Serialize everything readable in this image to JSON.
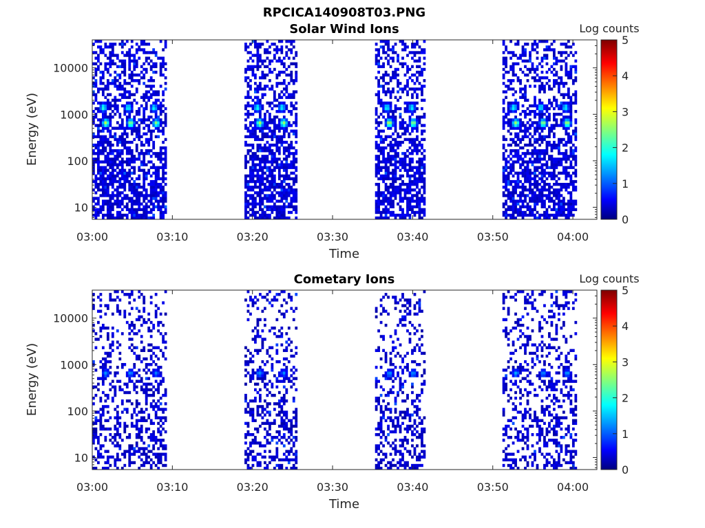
{
  "figure": {
    "title": "RPCICA140908T03.PNG"
  },
  "chart_data": [
    {
      "type": "heatmap",
      "title": "Solar Wind Ions",
      "xlabel": "Time",
      "ylabel": "Energy (eV)",
      "x_ticks": [
        "03:00",
        "03:10",
        "03:20",
        "03:30",
        "03:40",
        "03:50",
        "04:00"
      ],
      "y_ticks": [
        "10",
        "100",
        "1000",
        "10000"
      ],
      "y_scale": "log",
      "y_range": [
        5.5,
        40000
      ],
      "x_range_minutes": [
        0,
        63
      ],
      "colorbar": {
        "label": "Log counts",
        "ticks": [
          "0",
          "1",
          "2",
          "3",
          "4",
          "5"
        ],
        "range": [
          0,
          5
        ],
        "colormap": "jet"
      },
      "scan_intervals_minutes": [
        [
          0.0,
          9.3
        ],
        [
          19.0,
          25.4
        ],
        [
          35.3,
          41.5
        ],
        [
          51.2,
          60.5
        ]
      ],
      "hotspots": [
        {
          "t": 1.7,
          "E": 650,
          "v": 2.7
        },
        {
          "t": 4.8,
          "E": 650,
          "v": 2.6
        },
        {
          "t": 8.0,
          "E": 650,
          "v": 2.5
        },
        {
          "t": 1.4,
          "E": 1400,
          "v": 2.0
        },
        {
          "t": 4.5,
          "E": 1400,
          "v": 1.9
        },
        {
          "t": 7.7,
          "E": 1400,
          "v": 1.8
        },
        {
          "t": 20.9,
          "E": 650,
          "v": 2.7
        },
        {
          "t": 23.9,
          "E": 650,
          "v": 2.6
        },
        {
          "t": 20.6,
          "E": 1400,
          "v": 1.9
        },
        {
          "t": 23.7,
          "E": 1400,
          "v": 1.8
        },
        {
          "t": 37.1,
          "E": 650,
          "v": 2.8
        },
        {
          "t": 40.1,
          "E": 650,
          "v": 2.6
        },
        {
          "t": 36.8,
          "E": 1400,
          "v": 1.9
        },
        {
          "t": 39.9,
          "E": 1400,
          "v": 1.8
        },
        {
          "t": 52.9,
          "E": 650,
          "v": 2.7
        },
        {
          "t": 56.3,
          "E": 650,
          "v": 2.6
        },
        {
          "t": 59.3,
          "E": 650,
          "v": 2.7
        },
        {
          "t": 52.6,
          "E": 1400,
          "v": 1.9
        },
        {
          "t": 56.0,
          "E": 1400,
          "v": 1.8
        },
        {
          "t": 59.1,
          "E": 1400,
          "v": 1.8
        }
      ],
      "background_level": 0.25,
      "occupancy": 0.55
    },
    {
      "type": "heatmap",
      "title": "Cometary Ions",
      "xlabel": "Time",
      "ylabel": "Energy (eV)",
      "x_ticks": [
        "03:00",
        "03:10",
        "03:20",
        "03:30",
        "03:40",
        "03:50",
        "04:00"
      ],
      "y_ticks": [
        "10",
        "100",
        "1000",
        "10000"
      ],
      "y_scale": "log",
      "y_range": [
        5.5,
        40000
      ],
      "x_range_minutes": [
        0,
        63
      ],
      "colorbar": {
        "label": "Log counts",
        "ticks": [
          "0",
          "1",
          "2",
          "3",
          "4",
          "5"
        ],
        "range": [
          0,
          5
        ],
        "colormap": "jet"
      },
      "scan_intervals_minutes": [
        [
          0.0,
          9.3
        ],
        [
          19.0,
          25.4
        ],
        [
          35.3,
          41.5
        ],
        [
          51.2,
          60.5
        ]
      ],
      "hotspots": [
        {
          "t": 1.7,
          "E": 650,
          "v": 1.3
        },
        {
          "t": 4.8,
          "E": 650,
          "v": 1.3
        },
        {
          "t": 8.0,
          "E": 650,
          "v": 1.2
        },
        {
          "t": 20.9,
          "E": 650,
          "v": 1.3
        },
        {
          "t": 23.9,
          "E": 650,
          "v": 1.2
        },
        {
          "t": 37.1,
          "E": 650,
          "v": 1.3
        },
        {
          "t": 40.1,
          "E": 650,
          "v": 1.3
        },
        {
          "t": 52.9,
          "E": 650,
          "v": 1.3
        },
        {
          "t": 56.3,
          "E": 650,
          "v": 1.2
        },
        {
          "t": 59.3,
          "E": 650,
          "v": 1.3
        }
      ],
      "background_level": 0.2,
      "occupancy": 0.32
    }
  ]
}
